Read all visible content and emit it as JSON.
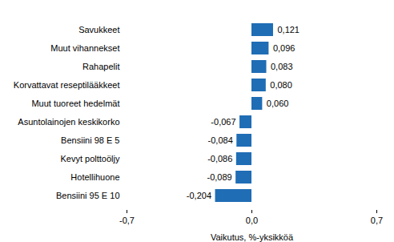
{
  "chart_data": {
    "type": "bar",
    "orientation": "horizontal",
    "categories": [
      "Savukkeet",
      "Muut vihannekset",
      "Rahapelit",
      "Korvattavat reseptilääkkeet",
      "Muut tuoreet hedelmät",
      "Asuntolainojen keskikorko",
      "Bensiini 98 E 5",
      "Kevyt polttoöljy",
      "Hotellihuone",
      "Bensiini 95 E 10"
    ],
    "values": [
      0.121,
      0.096,
      0.083,
      0.08,
      0.06,
      -0.067,
      -0.084,
      -0.086,
      -0.089,
      -0.204
    ],
    "value_labels": [
      "0,121",
      "0,096",
      "0,083",
      "0,080",
      "0,060",
      "-0,067",
      "-0,084",
      "-0,086",
      "-0,089",
      "-0,204"
    ],
    "data_labels": true,
    "color": "#1f6db5",
    "xlabel": "Vaikutus, %-yksikköä",
    "xlim": [
      -0.7,
      0.7
    ],
    "xticks": [
      {
        "value": -0.7,
        "label": "-0,7"
      },
      {
        "value": 0,
        "label": "0,0"
      },
      {
        "value": 0.7,
        "label": "0,7"
      }
    ],
    "grid": false
  }
}
